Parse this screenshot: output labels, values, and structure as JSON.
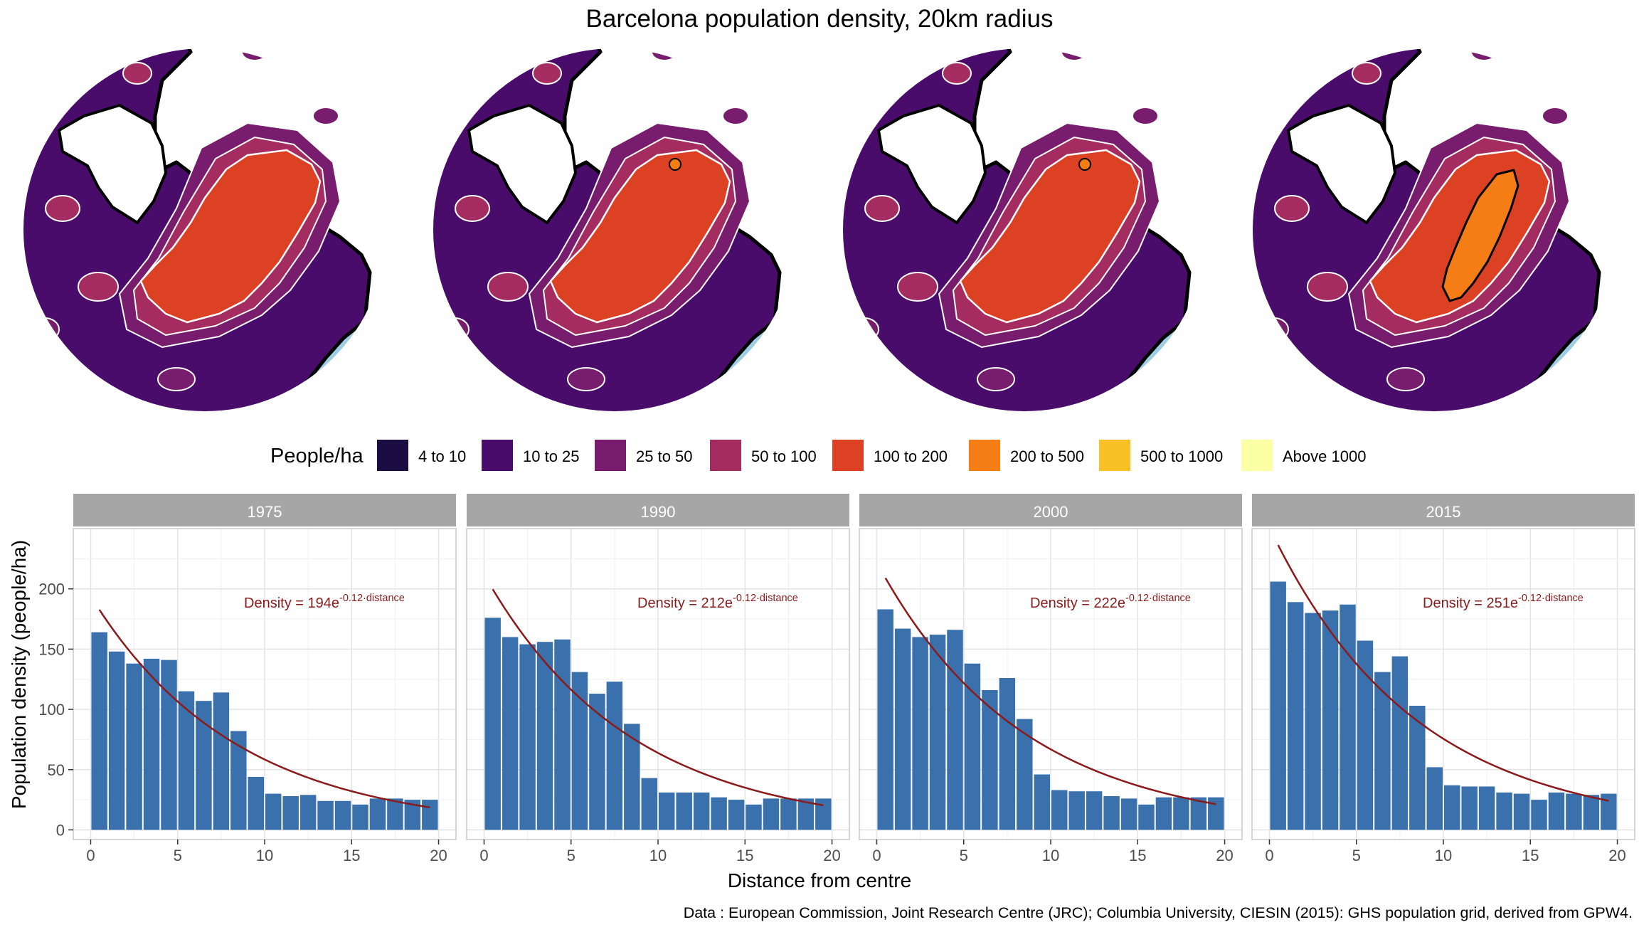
{
  "title": "Barcelona population density, 20km radius",
  "legend": {
    "title": "People/ha",
    "items": [
      {
        "label": "4 to 10",
        "color": "#1b0c41"
      },
      {
        "label": "10 to 25",
        "color": "#4a0c6b"
      },
      {
        "label": "25 to 50",
        "color": "#781c6d"
      },
      {
        "label": "50 to 100",
        "color": "#a52c60"
      },
      {
        "label": "100 to 200",
        "color": "#dd4124"
      },
      {
        "label": "200 to 500",
        "color": "#f57d15"
      },
      {
        "label": "500 to 1000",
        "color": "#fac127"
      },
      {
        "label": "Above 1000",
        "color": "#fcffa4"
      }
    ]
  },
  "maps": [
    {
      "year": "1975",
      "core_class": "100 to 200"
    },
    {
      "year": "1990",
      "core_class": "100 to 200"
    },
    {
      "year": "2000",
      "core_class": "100 to 200"
    },
    {
      "year": "2015",
      "core_class": "200 to 500"
    }
  ],
  "sea_color": "#9ecfe0",
  "caption": "Data : European Commission, Joint Research Centre (JRC); Columbia University, CIESIN (2015): GHS population grid, derived from GPW4.",
  "chart_data": {
    "type": "bar",
    "xlabel": "Distance from centre",
    "ylabel": "Population density (people/ha)",
    "xlim": [
      -1,
      21
    ],
    "ylim": [
      -8,
      250
    ],
    "xticks": [
      0,
      5,
      10,
      15,
      20
    ],
    "yticks": [
      0,
      50,
      100,
      150,
      200
    ],
    "x": [
      1,
      2,
      3,
      4,
      5,
      6,
      7,
      8,
      9,
      10,
      11,
      12,
      13,
      14,
      15,
      16,
      17,
      18,
      19,
      20
    ],
    "bar_color": "#3a70ab",
    "fit_color": "#8b1a1a",
    "fit_rate": 0.12,
    "panels": [
      {
        "label": "1975",
        "fit_a": 194,
        "fit_text": {
          "prefix": "Density = ",
          "coef": "194e",
          "exponent": "-0.12·distance"
        },
        "values": [
          164,
          148,
          138,
          142,
          141,
          115,
          107,
          114,
          82,
          44,
          30,
          28,
          29,
          24,
          24,
          21,
          26,
          26,
          25,
          25
        ]
      },
      {
        "label": "1990",
        "fit_a": 212,
        "fit_text": {
          "prefix": "Density = ",
          "coef": "212e",
          "exponent": "-0.12·distance"
        },
        "values": [
          176,
          160,
          154,
          156,
          158,
          131,
          113,
          123,
          88,
          43,
          31,
          31,
          31,
          27,
          25,
          21,
          26,
          26,
          26,
          26
        ]
      },
      {
        "label": "2000",
        "fit_a": 222,
        "fit_text": {
          "prefix": "Density = ",
          "coef": "222e",
          "exponent": "-0.12·distance"
        },
        "values": [
          183,
          167,
          160,
          162,
          166,
          138,
          116,
          126,
          92,
          46,
          33,
          32,
          32,
          28,
          26,
          21,
          27,
          27,
          27,
          27
        ]
      },
      {
        "label": "2015",
        "fit_a": 251,
        "fit_text": {
          "prefix": "Density = ",
          "coef": "251e",
          "exponent": "-0.12·distance"
        },
        "values": [
          206,
          189,
          180,
          182,
          187,
          157,
          131,
          144,
          103,
          52,
          37,
          36,
          36,
          31,
          30,
          25,
          31,
          30,
          29,
          30
        ]
      }
    ]
  }
}
